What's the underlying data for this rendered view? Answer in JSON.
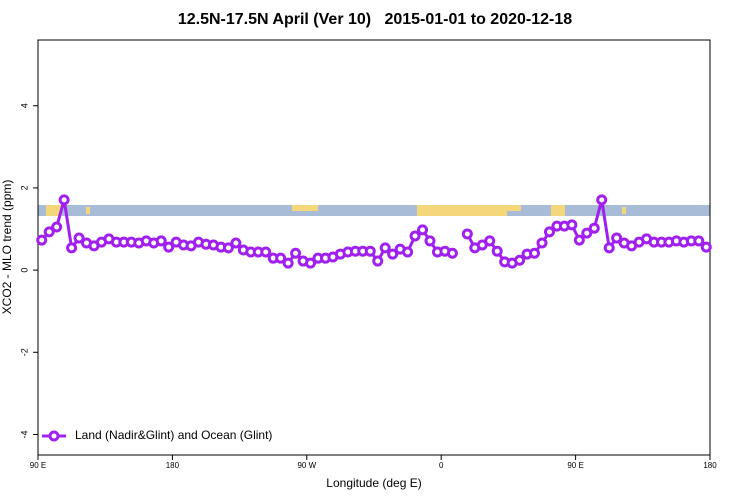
{
  "chart_data": {
    "type": "line",
    "title": "12.5N-17.5N April (Ver 10)   2015-01-01 to 2020-12-18",
    "xlabel": "Longitude (deg E)",
    "ylabel": "XCO2 - MLO trend (ppm)",
    "xlim": [
      90,
      540
    ],
    "ylim": [
      -4.5,
      5.6
    ],
    "xticks": [
      {
        "value": 90,
        "label": "90 E"
      },
      180,
      {
        "value": 270,
        "label": "90 W"
      },
      {
        "value": 360,
        "label": "0"
      },
      {
        "value": 450,
        "label": "90 E"
      },
      {
        "value": 540,
        "label": "180"
      }
    ],
    "yticks": [
      -4,
      -2,
      0,
      2,
      4
    ],
    "legend": "bottom-left",
    "x": [
      92.5,
      97.5,
      102.5,
      107.5,
      112.5,
      117.5,
      122.5,
      127.5,
      132.5,
      137.5,
      142.5,
      147.5,
      152.5,
      157.5,
      162.5,
      167.5,
      172.5,
      177.5,
      182.5,
      187.5,
      192.5,
      197.5,
      202.5,
      207.5,
      212.5,
      217.5,
      222.5,
      227.5,
      232.5,
      237.5,
      242.5,
      247.5,
      252.5,
      257.5,
      262.5,
      267.5,
      272.5,
      277.5,
      282.5,
      287.5,
      292.5,
      297.5,
      302.5,
      307.5,
      312.5,
      317.5,
      322.5,
      327.5,
      332.5,
      337.5,
      342.5,
      347.5,
      352.5,
      357.5,
      362.5,
      367.5,
      372.5,
      377.5,
      382.5,
      387.5,
      392.5,
      397.5,
      402.5,
      407.5,
      412.5,
      417.5,
      422.5,
      427.5,
      432.5,
      437.5,
      442.5,
      447.5,
      452.5,
      457.5,
      462.5,
      467.5,
      472.5,
      477.5,
      482.5,
      487.5,
      492.5,
      497.5,
      502.5,
      507.5,
      512.5,
      517.5,
      522.5,
      527.5,
      532.5,
      537.5
    ],
    "series": [
      {
        "name": "Land (Nadir&Glint) and Ocean (Glint)",
        "color": "#a020f0",
        "values": [
          0.73,
          0.93,
          1.05,
          1.71,
          0.54,
          0.78,
          0.66,
          0.59,
          0.68,
          0.76,
          0.68,
          0.68,
          0.68,
          0.66,
          0.71,
          0.66,
          0.71,
          0.56,
          0.68,
          0.61,
          0.59,
          0.68,
          0.63,
          0.61,
          0.56,
          0.54,
          0.66,
          0.49,
          0.44,
          0.44,
          0.44,
          0.29,
          0.29,
          0.17,
          0.41,
          0.22,
          0.17,
          0.29,
          0.29,
          0.32,
          0.39,
          0.44,
          0.46,
          0.46,
          0.46,
          0.22,
          0.54,
          0.39,
          0.51,
          0.44,
          0.83,
          0.98,
          0.71,
          0.44,
          0.46,
          0.41,
          null,
          0.88,
          0.54,
          0.61,
          0.71,
          0.46,
          0.2,
          0.17,
          0.24,
          0.39,
          0.41,
          0.66,
          0.93,
          1.07,
          1.07,
          1.1,
          0.73,
          0.9,
          1.02,
          1.71,
          0.54,
          0.78,
          0.66,
          0.59,
          0.68,
          0.76,
          0.68,
          0.68,
          0.68,
          0.71,
          0.68,
          0.71,
          0.71,
          0.56
        ]
      }
    ]
  }
}
